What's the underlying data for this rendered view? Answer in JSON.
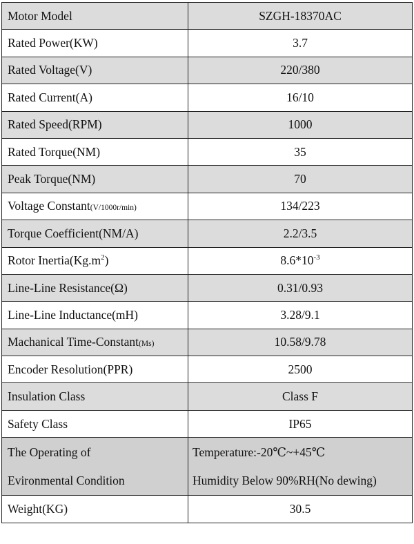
{
  "rows": [
    {
      "label": "Motor Model",
      "value": "SZGH-18370AC"
    },
    {
      "label": "Rated Power(KW)",
      "value": "3.7"
    },
    {
      "label": "Rated Voltage(V)",
      "value": "220/380"
    },
    {
      "label": "Rated Current(A)",
      "value": "16/10"
    },
    {
      "label": "Rated Speed(RPM)",
      "value": "1000"
    },
    {
      "label": "Rated Torque(NM)",
      "value": "35"
    },
    {
      "label": "Peak Torque(NM)",
      "value": "70"
    },
    {
      "label": "Voltage Constant",
      "label_small": "(V/1000r/min)",
      "value": "134/223"
    },
    {
      "label": "Torque Coefficient(NM/A)",
      "value": "2.2/3.5"
    },
    {
      "label": "Rotor Inertia(Kg.m",
      "label_sup": "2",
      "label_end": ")",
      "value": "8.6*10",
      "value_sup": "-3"
    },
    {
      "label": "Line-Line Resistance(Ω)",
      "value": "0.31/0.93"
    },
    {
      "label": "Line-Line Inductance(mH)",
      "value": "3.28/9.1"
    },
    {
      "label": "Machanical Time-Constant",
      "label_small": "(Ms)",
      "value": "10.58/9.78"
    },
    {
      "label": "Encoder Resolution(PPR)",
      "value": "2500"
    },
    {
      "label": "Insulation Class",
      "value": "Class F"
    },
    {
      "label": "Safety Class",
      "value": "IP65"
    }
  ],
  "environment": {
    "label_line1": "The Operating of",
    "label_line2": "Evironmental Condition",
    "value_line1": "Temperature:-20℃~+45℃",
    "value_line2": "Humidity Below 90%RH(No dewing)"
  },
  "weight": {
    "label": "Weight(KG)",
    "value": "30.5"
  },
  "colors": {
    "shade": "#dcdcdc",
    "env_shade": "#d0d0d0",
    "border": "#222222"
  }
}
